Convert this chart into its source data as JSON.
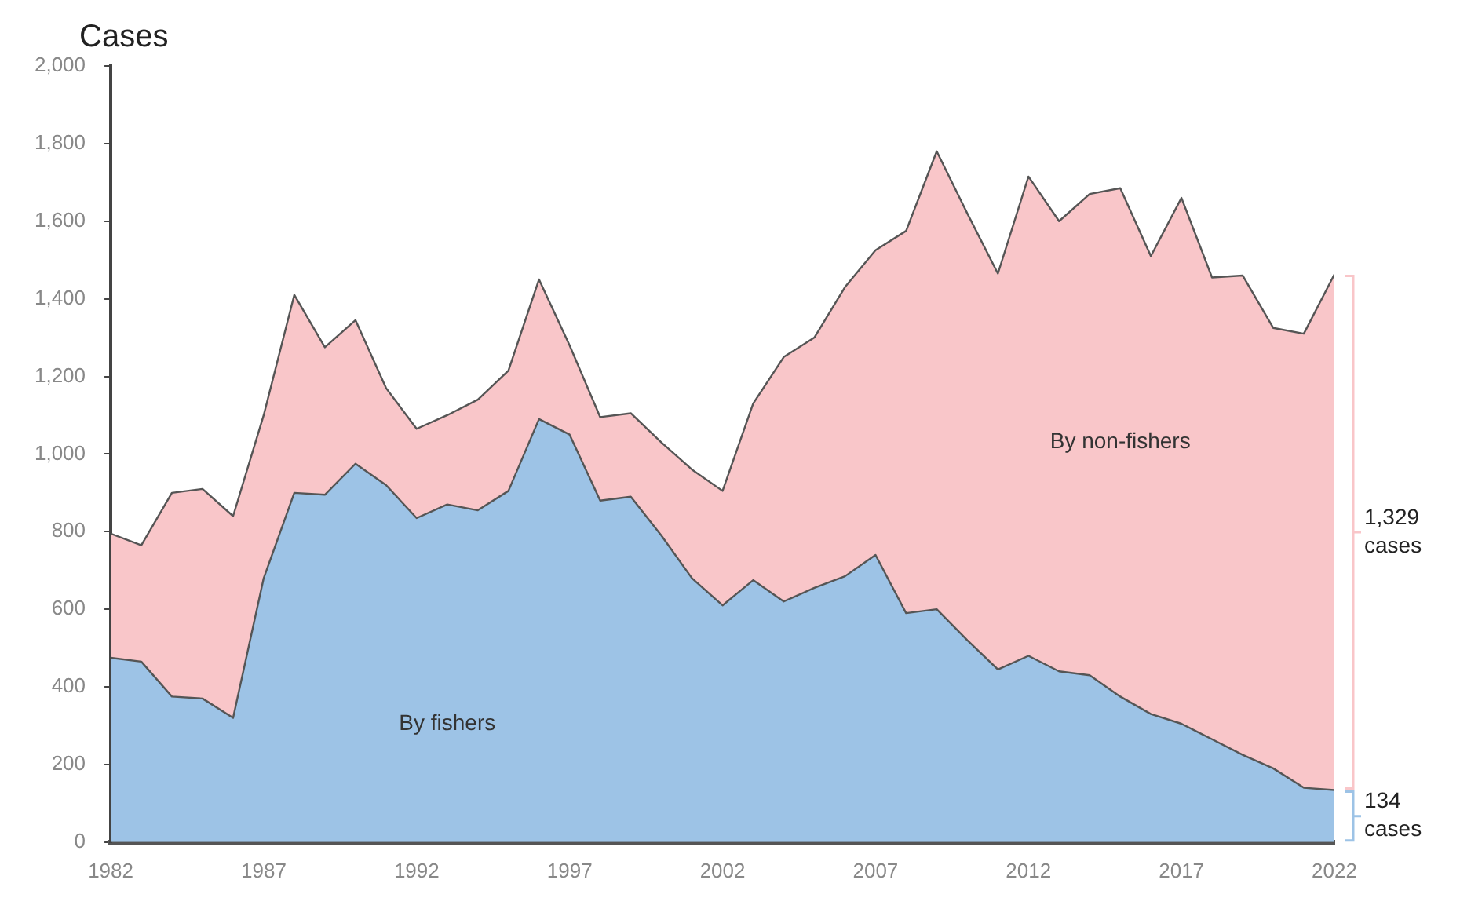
{
  "chart_data": {
    "type": "area",
    "stacked": true,
    "ylabel": "Cases",
    "legend": false,
    "grid": false,
    "x": [
      1982,
      1983,
      1984,
      1985,
      1986,
      1987,
      1988,
      1989,
      1990,
      1991,
      1992,
      1993,
      1994,
      1995,
      1996,
      1997,
      1998,
      1999,
      2000,
      2001,
      2002,
      2003,
      2004,
      2005,
      2006,
      2007,
      2008,
      2009,
      2010,
      2011,
      2012,
      2013,
      2014,
      2015,
      2016,
      2017,
      2018,
      2019,
      2020,
      2021,
      2022
    ],
    "xlim": [
      1982,
      2022
    ],
    "xticks": [
      1982,
      1987,
      1992,
      1997,
      2002,
      2007,
      2012,
      2017,
      2022
    ],
    "ylim": [
      0,
      2000
    ],
    "yticks": [
      0,
      200,
      400,
      600,
      800,
      {
        "value": 1000,
        "label": "1,000"
      },
      {
        "value": 1200,
        "label": "1,200"
      },
      {
        "value": 1400,
        "label": "1,400"
      },
      {
        "value": 1600,
        "label": "1,600"
      },
      {
        "value": 1800,
        "label": "1,800"
      },
      {
        "value": 2000,
        "label": "2,000"
      }
    ],
    "series": [
      {
        "name": "By fishers",
        "color": "#9dc3e6",
        "values": [
          475,
          465,
          375,
          370,
          320,
          680,
          900,
          895,
          975,
          920,
          835,
          870,
          855,
          905,
          1090,
          1050,
          880,
          890,
          790,
          680,
          610,
          675,
          620,
          655,
          685,
          740,
          590,
          600,
          520,
          445,
          480,
          440,
          430,
          375,
          330,
          305,
          265,
          225,
          190,
          140,
          134
        ]
      },
      {
        "name": "By non-fishers",
        "color": "#f9c6c9",
        "values": [
          320,
          300,
          525,
          540,
          520,
          420,
          510,
          380,
          370,
          250,
          230,
          230,
          285,
          310,
          360,
          230,
          215,
          215,
          240,
          280,
          295,
          455,
          630,
          645,
          745,
          785,
          985,
          1180,
          1100,
          1020,
          1235,
          1160,
          1240,
          1310,
          1180,
          1355,
          1190,
          1235,
          1135,
          1170,
          1329
        ]
      }
    ],
    "annotations": [
      "134 cases",
      "1,329 cases"
    ]
  }
}
